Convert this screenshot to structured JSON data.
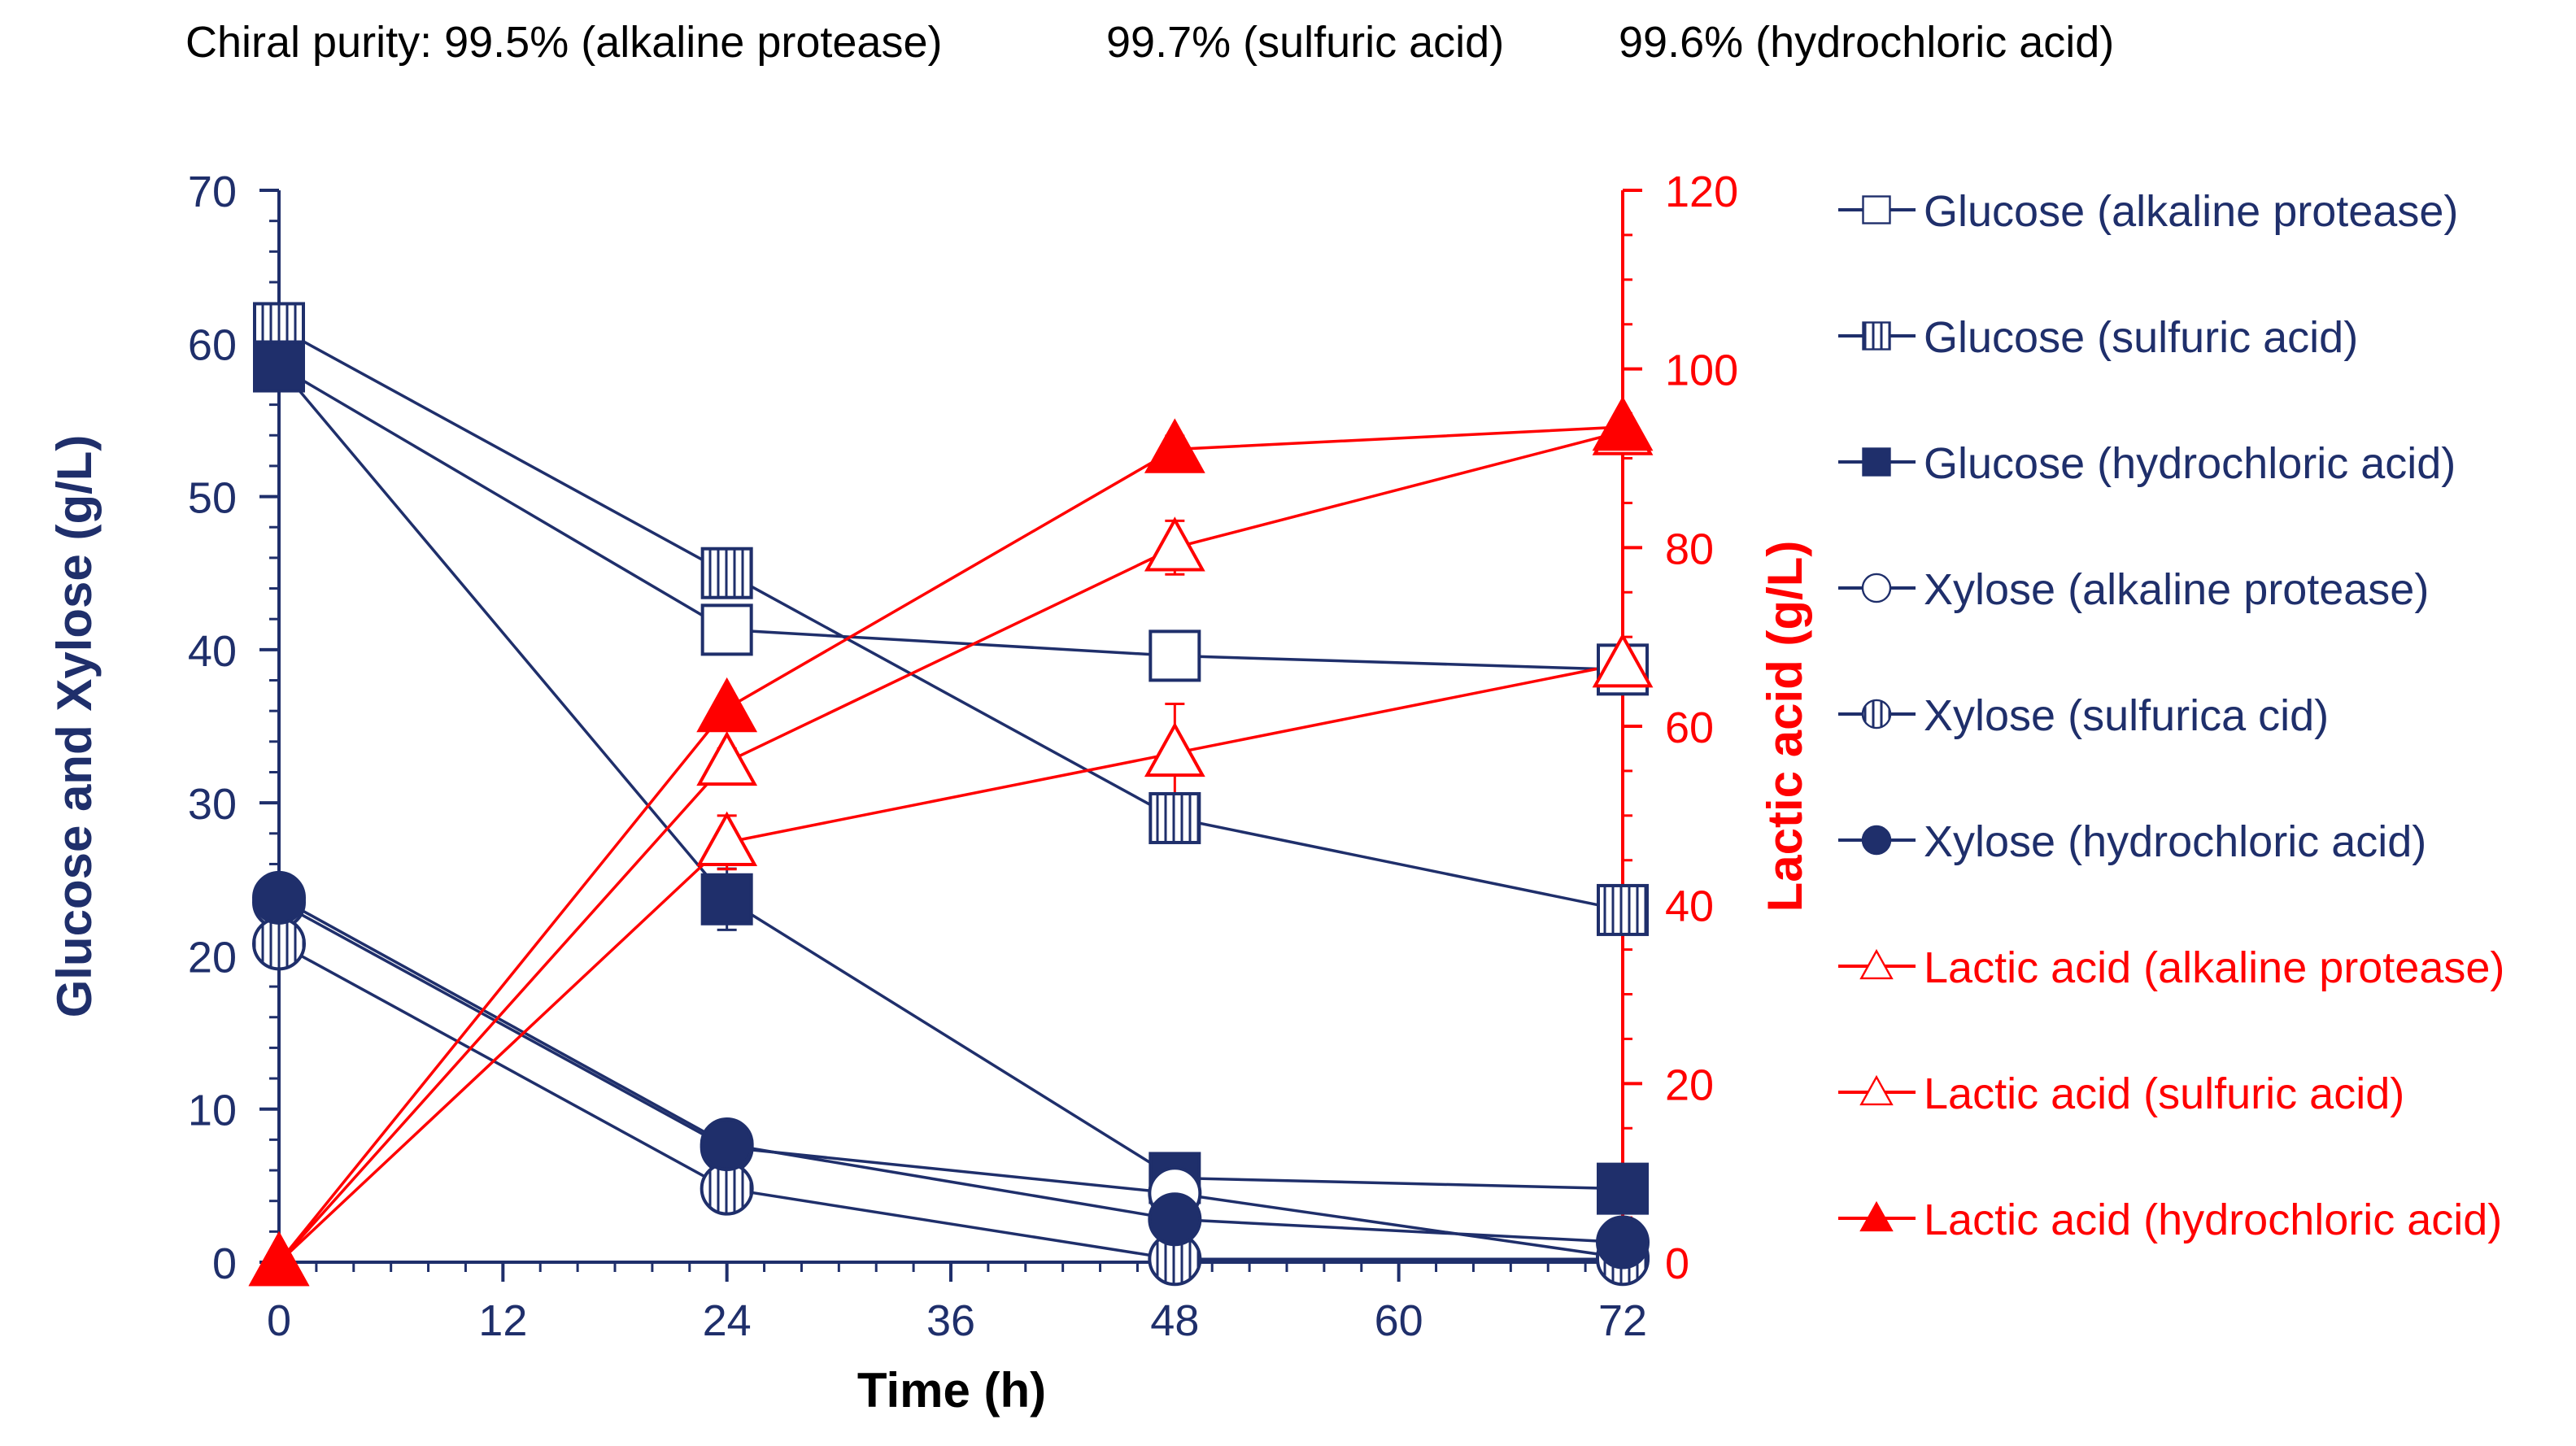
{
  "header": {
    "purity_prefix": "Chiral purity:",
    "purity_values": [
      "99.5% (alkaline protease)",
      "99.7% (sulfuric acid)",
      "99.6% (hydrochloric acid)"
    ]
  },
  "chart_data": {
    "type": "line",
    "x": [
      0,
      24,
      48,
      72
    ],
    "xlabel": "Time (h)",
    "ylabel_left": "Glucose and Xylose (g/L)",
    "ylabel_right": "Lactic acid (g/L)",
    "xlim": [
      0,
      72
    ],
    "ylim_left": [
      0,
      70
    ],
    "ylim_right": [
      0,
      120
    ],
    "xticks": [
      0,
      12,
      24,
      36,
      48,
      60,
      72
    ],
    "yticks_left": [
      0,
      10,
      20,
      30,
      40,
      50,
      60,
      70
    ],
    "yticks_right": [
      0,
      20,
      40,
      60,
      80,
      100,
      120
    ],
    "colors": {
      "sugar": "#1f2f6b",
      "lactic": "#ff0000"
    },
    "legend_position": "right",
    "series": [
      {
        "name": "Glucose (alkaline protease)",
        "axis": "left",
        "marker": "square",
        "fill": "open",
        "values": [
          58.5,
          41.3,
          39.6,
          38.7
        ],
        "errors": [
          0.6,
          1.5,
          0.5,
          1.2
        ]
      },
      {
        "name": "Glucose (sulfuric acid)",
        "axis": "left",
        "marker": "square",
        "fill": "hatch",
        "values": [
          61.0,
          45.0,
          29.0,
          23.0
        ],
        "errors": [
          1.0,
          1.0,
          0.8,
          0.6
        ]
      },
      {
        "name": "Glucose (hydrochloric acid)",
        "axis": "left",
        "marker": "square",
        "fill": "solid",
        "values": [
          58.5,
          23.7,
          5.5,
          4.8
        ],
        "errors": [
          0.8,
          2.0,
          0.5,
          0.4
        ]
      },
      {
        "name": "Xylose (alkaline protease)",
        "axis": "left",
        "marker": "circle",
        "fill": "open",
        "values": [
          23.5,
          7.5,
          4.5,
          0.3
        ],
        "errors": [
          0.3,
          0.4,
          0.3,
          0.2
        ]
      },
      {
        "name": "Xylose (sulfurica cid)",
        "axis": "left",
        "marker": "circle",
        "fill": "hatch",
        "values": [
          20.8,
          4.8,
          0.2,
          0.2
        ],
        "errors": [
          0.5,
          0.4,
          0.2,
          0.2
        ]
      },
      {
        "name": "Xylose (hydrochloric acid)",
        "axis": "left",
        "marker": "circle",
        "fill": "solid",
        "values": [
          23.8,
          7.7,
          2.8,
          1.3
        ],
        "errors": [
          0.4,
          0.4,
          0.3,
          0.3
        ]
      },
      {
        "name": "Lactic acid (alkaline protease)",
        "axis": "right",
        "marker": "triangle",
        "fill": "open",
        "values": [
          0,
          47,
          57,
          67
        ],
        "errors": [
          0.3,
          3.0,
          5.5,
          2.0
        ]
      },
      {
        "name": "Lactic acid (sulfuric acid)",
        "axis": "right",
        "marker": "triangle",
        "fill": "open",
        "values": [
          0,
          56,
          80,
          93
        ],
        "errors": [
          0.3,
          1.5,
          3.0,
          1.0
        ]
      },
      {
        "name": "Lactic acid (hydrochloric acid)",
        "axis": "right",
        "marker": "triangle",
        "fill": "solid",
        "values": [
          0,
          62,
          91,
          93.5
        ],
        "errors": [
          0.3,
          1.0,
          1.5,
          0.8
        ]
      }
    ]
  }
}
